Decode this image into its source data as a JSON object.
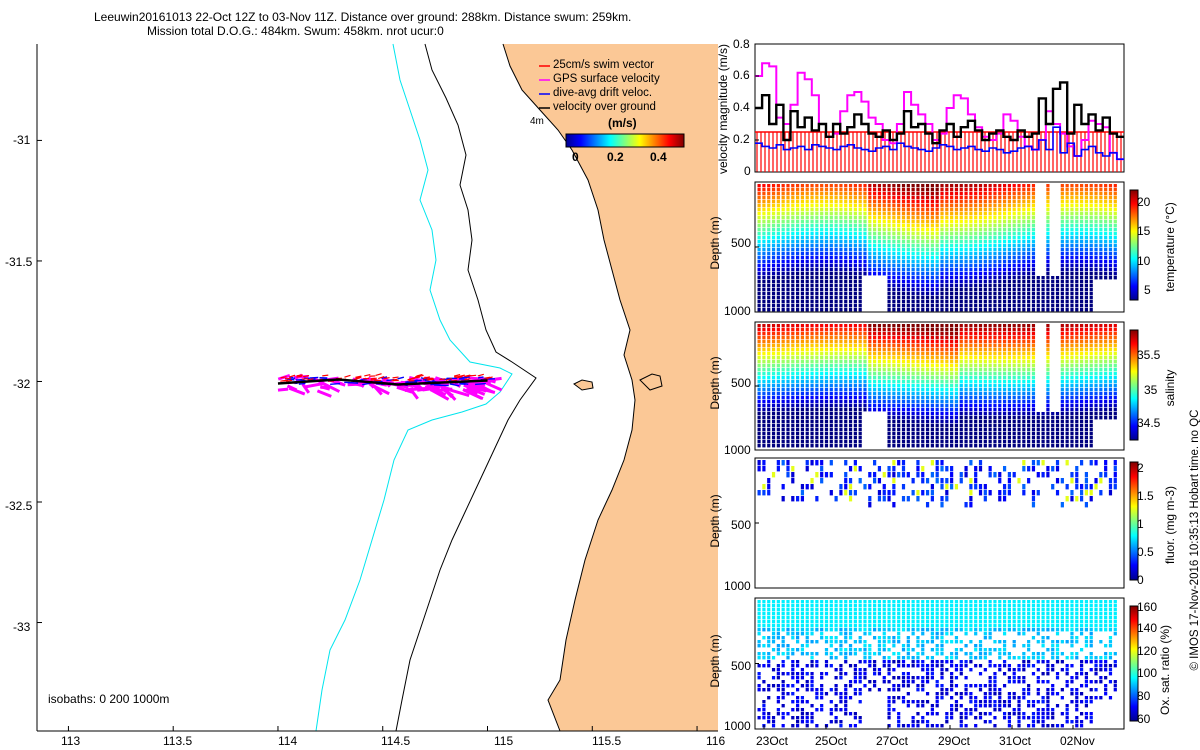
{
  "header": {
    "line1": "Leeuwin20161013 22-Oct 12Z to 03-Nov 11Z. Distance over ground: 288km. Distance swum: 259km.",
    "line2": "Mission total D.O.G.: 484km. Swum: 458km. nrot ucur:0"
  },
  "footer_note": "© IMOS 17-Nov-2016 10:35:13 Hobart time. no QC",
  "colors": {
    "land": "#FBC896",
    "coast": "#000000",
    "isobath_200": "#000000",
    "isobath_1000": "#00E5EE",
    "swim_vector": "#FF0000",
    "gps_velocity": "#FF00FF",
    "drift_velocity": "#0000FF",
    "velocity_over_ground": "#000000"
  },
  "map": {
    "type": "map",
    "isobaths_label": "isobaths: 0   200  1000m",
    "x_ticks": [
      "113",
      "113.5",
      "114",
      "114.5",
      "115",
      "115.5",
      "116"
    ],
    "y_ticks": [
      "-31",
      "-31.5",
      "-32",
      "-32.5",
      "-33"
    ],
    "xlim": [
      112.85,
      116.1
    ],
    "ylim": [
      -33.45,
      -30.6
    ],
    "legend": {
      "items": [
        {
          "label": "25cm/s swim vector",
          "color": "#FF0000"
        },
        {
          "label": "GPS surface velocity",
          "color": "#FF00FF"
        },
        {
          "label": "dive-avg drift veloc.",
          "color": "#0000FF"
        },
        {
          "label": "velocity over ground",
          "color": "#000000"
        }
      ],
      "colorbar_title": "(m/s)",
      "colorbar_ticks": [
        "0",
        "0.2",
        "0.4"
      ]
    },
    "place_label": "4m",
    "track": {
      "lon_start": 114.0,
      "lon_end": 115.0,
      "lat": -32.0
    }
  },
  "chart_data": [
    {
      "type": "line",
      "title": "",
      "ylabel": "velocity magnitude (m/s)",
      "ylim": [
        0,
        0.8
      ],
      "y_ticks": [
        "0",
        "0.2",
        "0.4",
        "0.6",
        "0.8"
      ],
      "x_ticks": [
        "23Oct",
        "25Oct",
        "27Oct",
        "29Oct",
        "31Oct",
        "02Nov"
      ],
      "swim_vector_level": 0.25,
      "series": [
        {
          "name": "GPS surface velocity",
          "color": "#FF00FF",
          "values": [
            0.6,
            0.68,
            0.66,
            0.34,
            0.3,
            0.42,
            0.62,
            0.58,
            0.48,
            0.3,
            0.22,
            0.24,
            0.38,
            0.48,
            0.5,
            0.44,
            0.34,
            0.3,
            0.2,
            0.18,
            0.3,
            0.5,
            0.42,
            0.36,
            0.3,
            0.2,
            0.24,
            0.4,
            0.48,
            0.46,
            0.36,
            0.28,
            0.22,
            0.2,
            0.24,
            0.36,
            0.32,
            0.22,
            0.16,
            0.14,
            0.2,
            0.38,
            0.3,
            0.24,
            0.16,
            0.1,
            0.2,
            0.32,
            0.3,
            0.28,
            0.12,
            0.08
          ]
        },
        {
          "name": "velocity over ground",
          "color": "#000000",
          "values": [
            0.4,
            0.48,
            0.3,
            0.42,
            0.2,
            0.38,
            0.28,
            0.34,
            0.26,
            0.3,
            0.22,
            0.3,
            0.24,
            0.28,
            0.36,
            0.3,
            0.24,
            0.22,
            0.26,
            0.2,
            0.24,
            0.38,
            0.28,
            0.3,
            0.24,
            0.18,
            0.26,
            0.3,
            0.22,
            0.28,
            0.32,
            0.26,
            0.2,
            0.24,
            0.26,
            0.22,
            0.2,
            0.26,
            0.22,
            0.24,
            0.46,
            0.3,
            0.52,
            0.56,
            0.24,
            0.42,
            0.3,
            0.36,
            0.26,
            0.34,
            0.24,
            0.22
          ]
        },
        {
          "name": "dive-avg drift veloc.",
          "color": "#0000FF",
          "values": [
            0.18,
            0.16,
            0.15,
            0.17,
            0.14,
            0.15,
            0.16,
            0.14,
            0.17,
            0.16,
            0.15,
            0.14,
            0.16,
            0.17,
            0.15,
            0.14,
            0.13,
            0.15,
            0.16,
            0.14,
            0.18,
            0.16,
            0.15,
            0.14,
            0.13,
            0.15,
            0.17,
            0.16,
            0.14,
            0.15,
            0.16,
            0.14,
            0.13,
            0.15,
            0.14,
            0.12,
            0.13,
            0.15,
            0.16,
            0.14,
            0.2,
            0.14,
            0.28,
            0.12,
            0.18,
            0.1,
            0.14,
            0.16,
            0.12,
            0.1,
            0.12,
            0.08
          ]
        }
      ]
    },
    {
      "type": "heatmap",
      "ylabel": "Depth (m)",
      "ylim": [
        1000,
        0
      ],
      "y_ticks": [
        "500",
        "1000"
      ],
      "colorbar_label": "temperature (°C)",
      "colorbar_ticks": [
        "5",
        "10",
        "15",
        "20"
      ],
      "crange": [
        3,
        22
      ]
    },
    {
      "type": "heatmap",
      "ylabel": "Depth (m)",
      "ylim": [
        1000,
        0
      ],
      "y_ticks": [
        "500",
        "1000"
      ],
      "colorbar_label": "salinity",
      "colorbar_ticks": [
        "34.5",
        "35",
        "35.5"
      ],
      "crange": [
        34.3,
        35.9
      ]
    },
    {
      "type": "scatter",
      "ylabel": "Depth (m)",
      "ylim": [
        1000,
        0
      ],
      "y_ticks": [
        "500",
        "1000"
      ],
      "colorbar_label": "fluor. (mg m-3)",
      "colorbar_ticks": [
        "0",
        "0.5",
        "1",
        "1.5",
        "2"
      ],
      "crange": [
        0,
        2
      ]
    },
    {
      "type": "scatter",
      "ylabel": "Depth (m)",
      "ylim": [
        1000,
        0
      ],
      "y_ticks": [
        "500",
        "1000"
      ],
      "x_ticks": [
        "23Oct",
        "25Oct",
        "27Oct",
        "29Oct",
        "31Oct",
        "02Nov"
      ],
      "colorbar_label": "Ox. sat. ratio (%)",
      "colorbar_ticks": [
        "60",
        "80",
        "100",
        "120",
        "140",
        "160"
      ],
      "crange": [
        60,
        170
      ]
    }
  ]
}
